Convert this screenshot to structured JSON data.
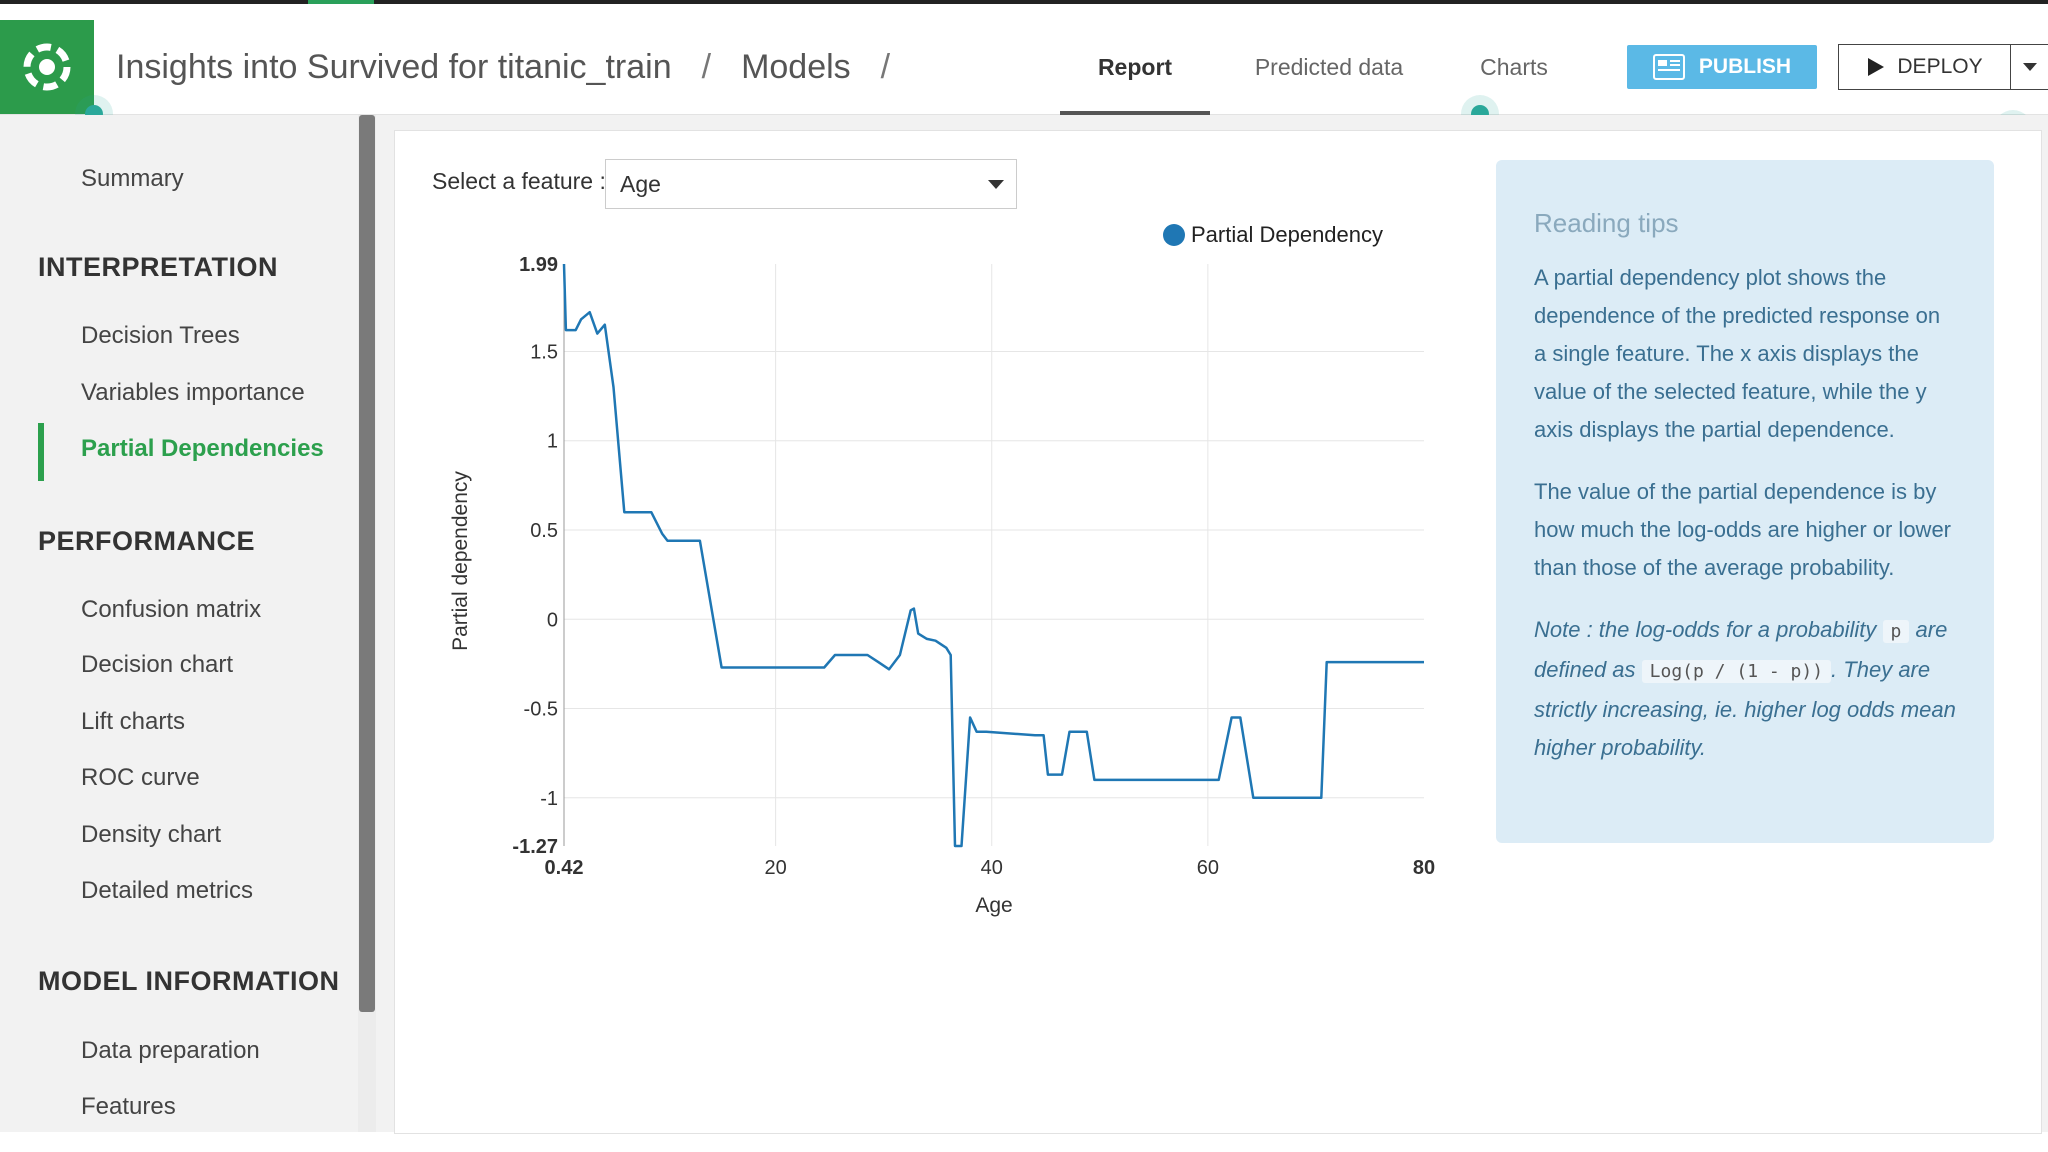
{
  "header": {
    "title": "Insights into Survived for titanic_train",
    "sep1": "/",
    "models": "Models",
    "sep2": "/",
    "tabs": [
      {
        "label": "Report",
        "active": true
      },
      {
        "label": "Predicted data",
        "active": false
      },
      {
        "label": "Charts",
        "active": false
      }
    ],
    "publish_label": "PUBLISH",
    "deploy_label": "DEPLOY"
  },
  "sidebar": {
    "summary": "Summary",
    "interpretation_title": "INTERPRETATION",
    "interpretation_items": [
      "Decision Trees",
      "Variables importance",
      "Partial Dependencies"
    ],
    "performance_title": "PERFORMANCE",
    "performance_items": [
      "Confusion matrix",
      "Decision chart",
      "Lift charts",
      "ROC curve",
      "Density chart",
      "Detailed metrics"
    ],
    "model_info_title": "MODEL INFORMATION",
    "model_info_items": [
      "Data preparation",
      "Features"
    ]
  },
  "feature_select": {
    "label": "Select a feature :",
    "value": "Age"
  },
  "tips": {
    "title": "Reading tips",
    "p1": "A partial dependency plot shows the dependence of the predicted response on a single feature. The x axis displays the value of the selected feature, while the y axis displays the partial dependence.",
    "p2": "The value of the partial dependence is by how much the log-odds are higher or lower than those of the average probability.",
    "note_a": "Note : the log-odds for a probability",
    "note_code1": "p",
    "note_b": "are defined as",
    "note_code2": "Log(p / (1 - p))",
    "note_c": ".",
    "note_d": "They are strictly increasing, ie. higher log odds mean higher probability."
  },
  "colors": {
    "brand_green": "#2c9b4b",
    "publish_blue": "#5bb9e6",
    "line_blue": "#1f77b4",
    "tips_bg": "#dcecf6"
  },
  "chart_data": {
    "type": "line",
    "xlabel": "Age",
    "ylabel": "Partial dependency",
    "xlim": [
      0.42,
      80
    ],
    "ylim": [
      -1.27,
      1.99
    ],
    "x_ticks": [
      {
        "v": 0.42,
        "label": "0.42",
        "bold": true
      },
      {
        "v": 20,
        "label": "20",
        "bold": false
      },
      {
        "v": 40,
        "label": "40",
        "bold": false
      },
      {
        "v": 60,
        "label": "60",
        "bold": false
      },
      {
        "v": 80,
        "label": "80",
        "bold": true
      }
    ],
    "y_ticks": [
      {
        "v": 1.99,
        "label": "1.99",
        "bold": true
      },
      {
        "v": 1.5,
        "label": "1.5",
        "bold": false
      },
      {
        "v": 1,
        "label": "1",
        "bold": false
      },
      {
        "v": 0.5,
        "label": "0.5",
        "bold": false
      },
      {
        "v": 0,
        "label": "0",
        "bold": false
      },
      {
        "v": -0.5,
        "label": "-0.5",
        "bold": false
      },
      {
        "v": -1,
        "label": "-1",
        "bold": false
      },
      {
        "v": -1.27,
        "label": "-1.27",
        "bold": true
      }
    ],
    "grid_x": [
      20,
      40,
      60
    ],
    "series": [
      {
        "name": "Partial Dependency",
        "color": "#1f77b4",
        "x": [
          0.42,
          0.6,
          1.5,
          2.0,
          2.8,
          3.5,
          4.2,
          5.0,
          6.0,
          7.0,
          8.5,
          9.5,
          10.0,
          12.5,
          13.0,
          15.0,
          19.0,
          24.5,
          25.5,
          27.5,
          28.5,
          29.5,
          30.5,
          31.5,
          32.5,
          32.8,
          33.2,
          34.0,
          34.8,
          35.8,
          36.2,
          36.6,
          37.2,
          38.0,
          38.6,
          39.5,
          44.0,
          44.8,
          45.2,
          46.5,
          47.2,
          48.8,
          49.5,
          51.0,
          57.0,
          61.0,
          62.2,
          63.0,
          64.2,
          64.8,
          70.5,
          71.0,
          72.5,
          80.0
        ],
        "y": [
          1.99,
          1.62,
          1.62,
          1.68,
          1.72,
          1.6,
          1.65,
          1.3,
          0.6,
          0.6,
          0.6,
          0.48,
          0.44,
          0.44,
          0.44,
          -0.27,
          -0.27,
          -0.27,
          -0.2,
          -0.2,
          -0.2,
          -0.24,
          -0.28,
          -0.2,
          0.05,
          0.06,
          -0.08,
          -0.11,
          -0.12,
          -0.16,
          -0.2,
          -1.27,
          -1.27,
          -0.55,
          -0.63,
          -0.63,
          -0.65,
          -0.65,
          -0.87,
          -0.87,
          -0.63,
          -0.63,
          -0.9,
          -0.9,
          -0.9,
          -0.9,
          -0.55,
          -0.55,
          -1.0,
          -1.0,
          -1.0,
          -0.24,
          -0.24,
          -0.24
        ]
      }
    ]
  }
}
